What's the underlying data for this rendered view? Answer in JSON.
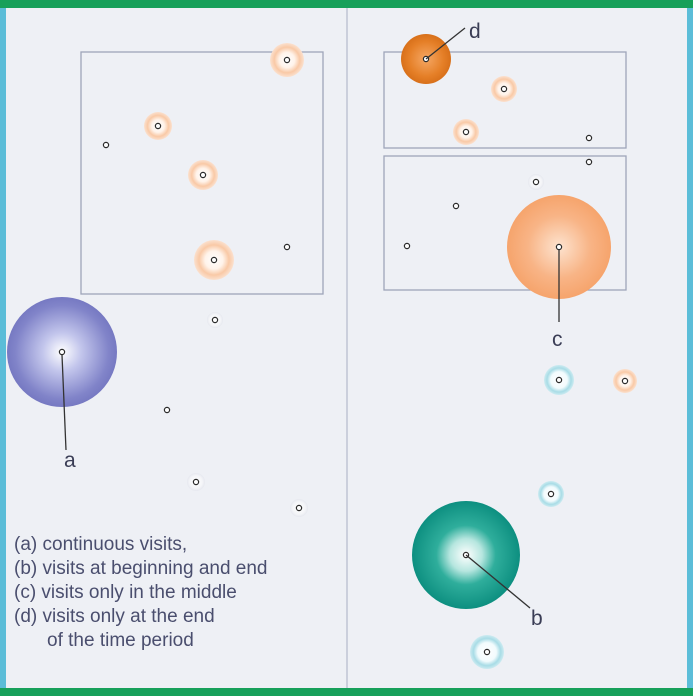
{
  "callouts": [
    {
      "id": "a",
      "label": "a"
    },
    {
      "id": "b",
      "label": "b"
    },
    {
      "id": "c",
      "label": "c"
    },
    {
      "id": "d",
      "label": "d"
    }
  ],
  "legend": [
    "(a) continuous visits,",
    "(b) visits at beginning and end",
    "(c) visits only in the middle",
    "(d) visits only at the end",
    "of the time period"
  ],
  "colors": {
    "background": "#eef0f5",
    "frame_left_right": "#5bbdd8",
    "frame_top_bottom": "#17a05a",
    "divider": "#bfc4d4",
    "box": "#9ea5ba",
    "continuous": "#7f82c6",
    "begin_end": "#139a8c",
    "middle": "#f6a66e",
    "end": "#e07a22",
    "light_blue": "#a8dce6",
    "light_orange": "#f9c9a6"
  }
}
